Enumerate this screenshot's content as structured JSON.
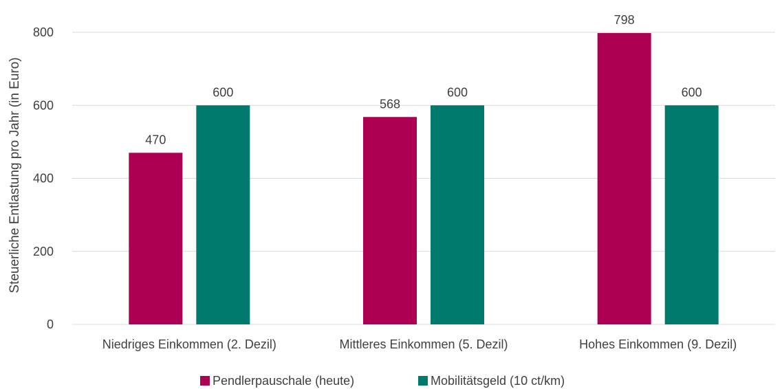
{
  "chart_data": {
    "type": "bar",
    "title": "",
    "xlabel": "",
    "ylabel": "Steuerliche Entlastung pro Jahr (in Euro)",
    "ylim": [
      0,
      800
    ],
    "yticks": [
      0,
      200,
      400,
      600,
      800
    ],
    "grid": true,
    "legend_position": "bottom",
    "categories": [
      "Niedriges Einkommen (2. Dezil)",
      "Mittleres Einkommen (5. Dezil)",
      "Hohes Einkommen (9. Dezil)"
    ],
    "series": [
      {
        "name": "Pendlerpauschale (heute)",
        "color": "#ad0054",
        "values": [
          470,
          568,
          798
        ]
      },
      {
        "name": "Mobilitätsgeld (10 ct/km)",
        "color": "#007a6c",
        "values": [
          600,
          600,
          600
        ]
      }
    ]
  }
}
